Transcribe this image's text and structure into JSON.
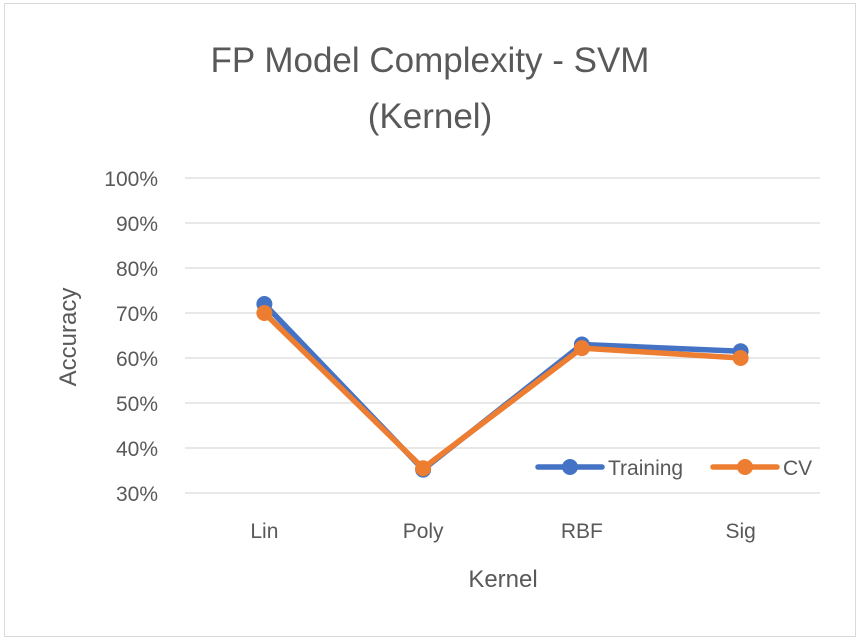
{
  "chart_data": {
    "type": "line",
    "title_line1": "FP Model Complexity - SVM",
    "title_line2": "(Kernel)",
    "xlabel": "Kernel",
    "ylabel": "Accuracy",
    "categories": [
      "Lin",
      "Poly",
      "RBF",
      "Sig"
    ],
    "y_ticks": [
      "30%",
      "40%",
      "50%",
      "60%",
      "70%",
      "80%",
      "90%",
      "100%"
    ],
    "ylim": [
      0.3,
      1.0
    ],
    "grid": true,
    "legend_position": "bottom-right inside plot",
    "series": [
      {
        "name": "Training",
        "color": "#4472C4",
        "values": [
          0.72,
          0.352,
          0.63,
          0.615
        ]
      },
      {
        "name": "CV",
        "color": "#ED7D31",
        "values": [
          0.7,
          0.355,
          0.622,
          0.6
        ]
      }
    ]
  },
  "colors": {
    "title_text": "#595959",
    "axis_text": "#595959",
    "gridline": "#d9d9d9"
  }
}
